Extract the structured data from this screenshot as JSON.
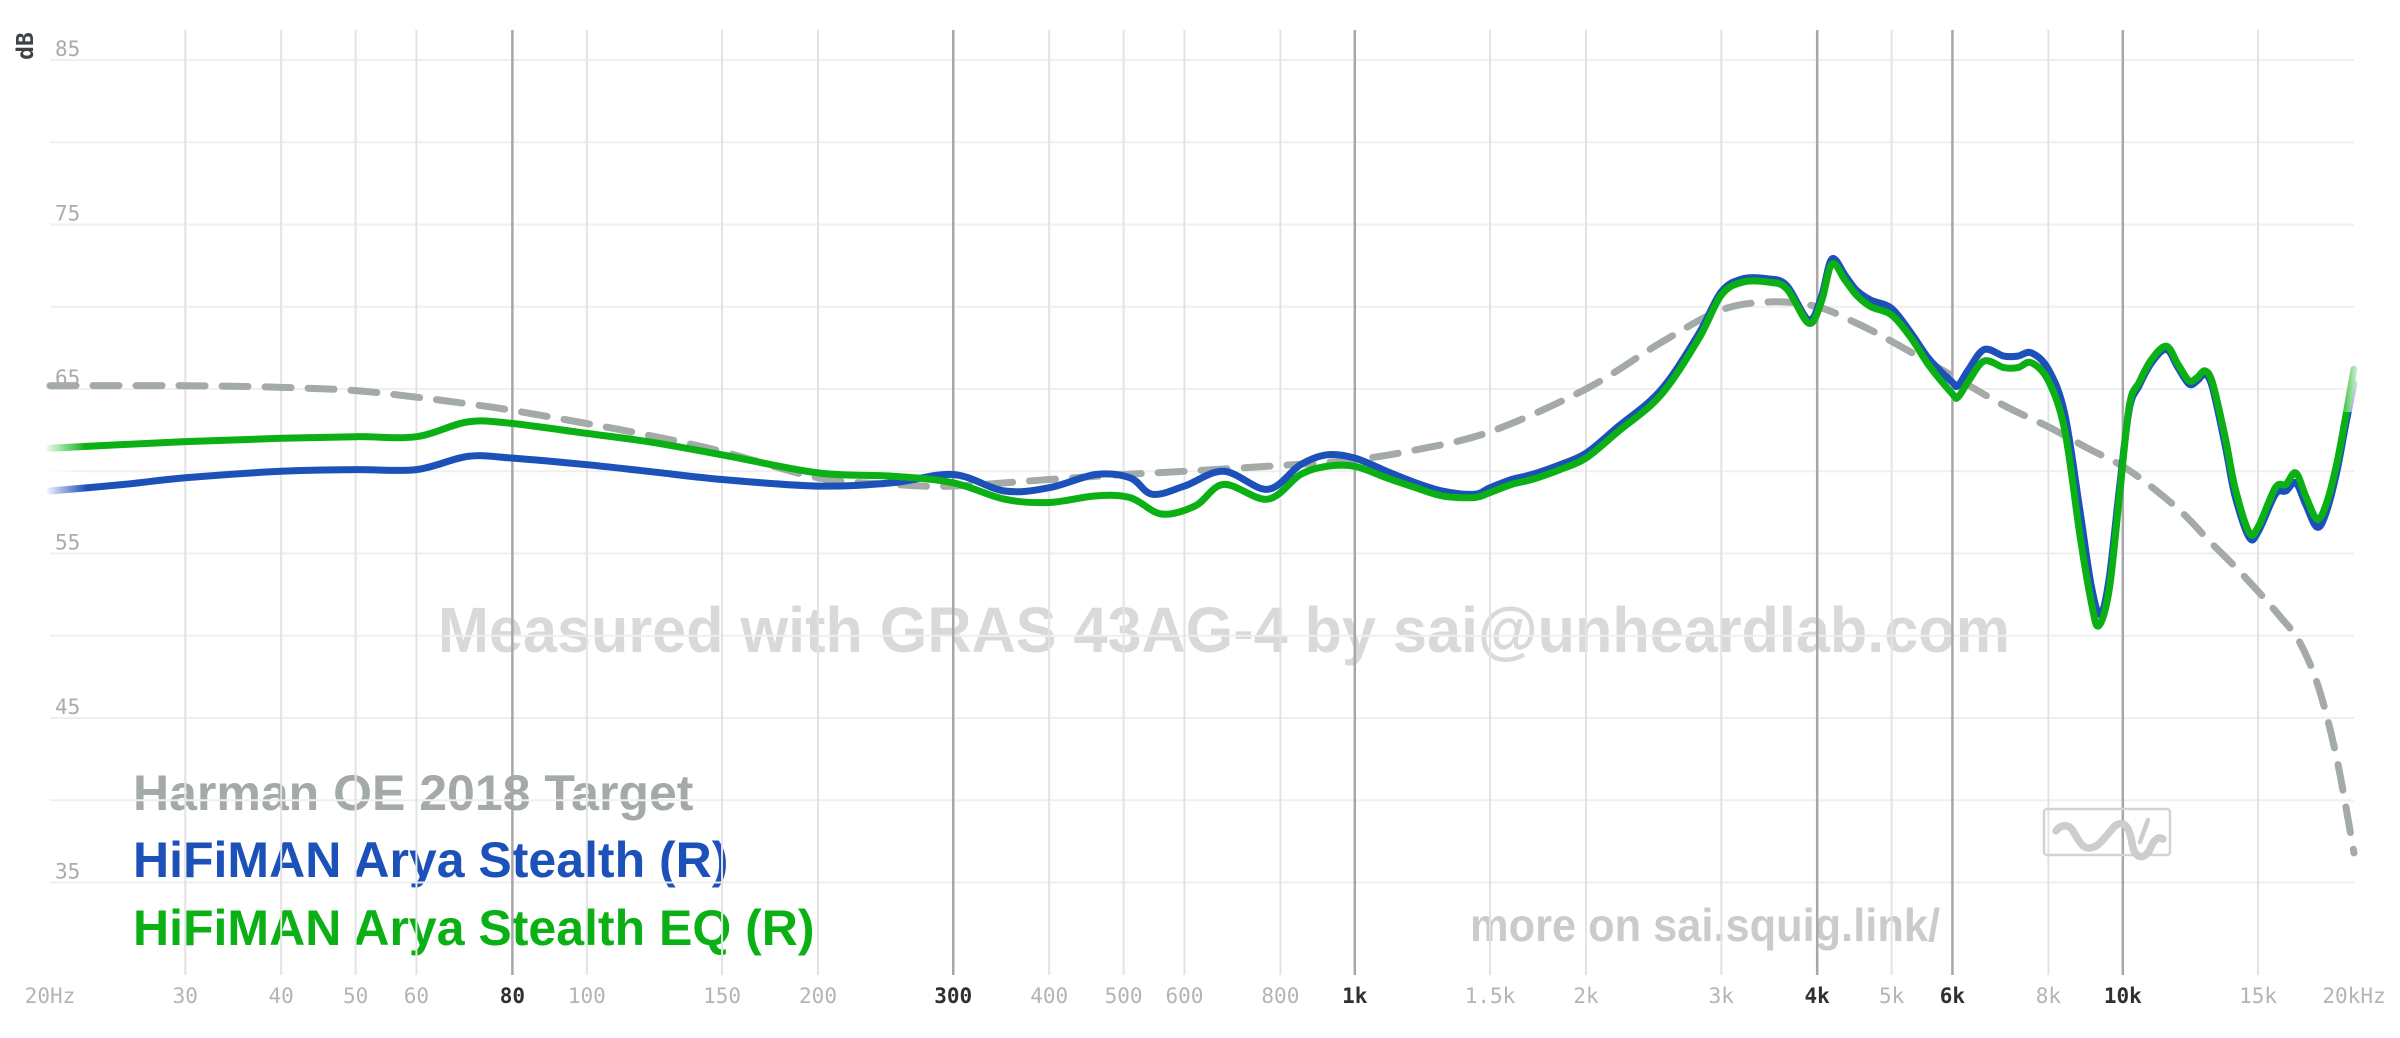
{
  "page": {
    "background": "#ffffff"
  },
  "axes": {
    "x": {
      "scale": "log",
      "min_hz": 20,
      "max_hz": 20000,
      "ticks": [
        {
          "f": 20,
          "label": "20Hz",
          "emph": false
        },
        {
          "f": 30,
          "label": "30",
          "emph": false
        },
        {
          "f": 40,
          "label": "40",
          "emph": false
        },
        {
          "f": 50,
          "label": "50",
          "emph": false
        },
        {
          "f": 60,
          "label": "60",
          "emph": false
        },
        {
          "f": 80,
          "label": "80",
          "emph": true
        },
        {
          "f": 100,
          "label": "100",
          "emph": false
        },
        {
          "f": 150,
          "label": "150",
          "emph": false
        },
        {
          "f": 200,
          "label": "200",
          "emph": false
        },
        {
          "f": 300,
          "label": "300",
          "emph": true
        },
        {
          "f": 400,
          "label": "400",
          "emph": false
        },
        {
          "f": 500,
          "label": "500",
          "emph": false
        },
        {
          "f": 600,
          "label": "600",
          "emph": false
        },
        {
          "f": 800,
          "label": "800",
          "emph": false
        },
        {
          "f": 1000,
          "label": "1k",
          "emph": true
        },
        {
          "f": 1500,
          "label": "1.5k",
          "emph": false
        },
        {
          "f": 2000,
          "label": "2k",
          "emph": false
        },
        {
          "f": 3000,
          "label": "3k",
          "emph": false
        },
        {
          "f": 4000,
          "label": "4k",
          "emph": true
        },
        {
          "f": 5000,
          "label": "5k",
          "emph": false
        },
        {
          "f": 6000,
          "label": "6k",
          "emph": true
        },
        {
          "f": 8000,
          "label": "8k",
          "emph": false
        },
        {
          "f": 10000,
          "label": "10k",
          "emph": true
        },
        {
          "f": 15000,
          "label": "15k",
          "emph": false
        },
        {
          "f": 20000,
          "label": "20kHz",
          "emph": false
        }
      ]
    },
    "y": {
      "unit": "dB",
      "min_db": 35,
      "max_db": 85,
      "gridline_step": 5,
      "labeled_ticks": [
        85,
        75,
        65,
        55,
        45,
        35
      ]
    }
  },
  "watermarks": {
    "center": "Measured with GRAS 43AG-4 by sai@unheardlab.com",
    "bottom_right": "more on sai.squig.link/"
  },
  "icons": {
    "bottom_right_logo": "squiggle-frequency-response-curve"
  },
  "colors": {
    "target_gray": "#a3aaa7",
    "stealth_blue": "#1d51ba",
    "eq_green": "#0ab014",
    "watermark_center": "#d9d9d9",
    "watermark_link": "#cbcbcb",
    "grid_light": "#e3e3e3",
    "grid_emph": "#a7a7a7",
    "grid_horizontal": "#efefef"
  },
  "chart_data": {
    "type": "line",
    "x_unit": "Hz",
    "y_unit": "dB",
    "x_scale": "log",
    "x_range": [
      20,
      20000
    ],
    "y_range": [
      35,
      85
    ],
    "grid": "on",
    "legend_position": "bottom-left",
    "series": [
      {
        "name": "Harman OE 2018 Target",
        "color": "#a3aaa7",
        "line_style": "dashed",
        "points": [
          [
            20,
            65.2
          ],
          [
            30,
            65.2
          ],
          [
            40,
            65.1
          ],
          [
            50,
            64.9
          ],
          [
            60,
            64.5
          ],
          [
            70,
            64.1
          ],
          [
            80,
            63.7
          ],
          [
            100,
            62.9
          ],
          [
            120,
            62.2
          ],
          [
            150,
            61.2
          ],
          [
            200,
            59.6
          ],
          [
            250,
            59.2
          ],
          [
            300,
            59.1
          ],
          [
            400,
            59.5
          ],
          [
            500,
            59.8
          ],
          [
            600,
            60.0
          ],
          [
            800,
            60.35
          ],
          [
            1000,
            60.7
          ],
          [
            1200,
            61.3
          ],
          [
            1500,
            62.4
          ],
          [
            2000,
            65.0
          ],
          [
            2500,
            67.8
          ],
          [
            3000,
            69.8
          ],
          [
            3500,
            70.3
          ],
          [
            4000,
            70.0
          ],
          [
            4500,
            69.0
          ],
          [
            5000,
            67.9
          ],
          [
            6000,
            65.8
          ],
          [
            7000,
            64.0
          ],
          [
            8000,
            62.7
          ],
          [
            9000,
            61.4
          ],
          [
            10000,
            60.3
          ],
          [
            11000,
            58.9
          ],
          [
            12000,
            57.4
          ],
          [
            13000,
            55.7
          ],
          [
            14000,
            54.2
          ],
          [
            15000,
            52.7
          ],
          [
            16000,
            51.2
          ],
          [
            17000,
            49.6
          ],
          [
            18000,
            46.8
          ],
          [
            19000,
            42.5
          ],
          [
            20000,
            36.8
          ]
        ]
      },
      {
        "name": "HiFiMAN Arya Stealth (R)",
        "color": "#1d51ba",
        "line_style": "solid",
        "points": [
          [
            20,
            58.8
          ],
          [
            25,
            59.2
          ],
          [
            30,
            59.6
          ],
          [
            40,
            60.0
          ],
          [
            50,
            60.1
          ],
          [
            60,
            60.1
          ],
          [
            70,
            60.9
          ],
          [
            80,
            60.8
          ],
          [
            100,
            60.4
          ],
          [
            120,
            60.0
          ],
          [
            150,
            59.5
          ],
          [
            200,
            59.1
          ],
          [
            250,
            59.3
          ],
          [
            300,
            59.8
          ],
          [
            350,
            58.8
          ],
          [
            400,
            59.0
          ],
          [
            460,
            59.8
          ],
          [
            510,
            59.6
          ],
          [
            545,
            58.6
          ],
          [
            600,
            59.1
          ],
          [
            675,
            60.0
          ],
          [
            770,
            58.9
          ],
          [
            850,
            60.4
          ],
          [
            920,
            61.0
          ],
          [
            1000,
            60.8
          ],
          [
            1100,
            60.0
          ],
          [
            1200,
            59.3
          ],
          [
            1300,
            58.8
          ],
          [
            1430,
            58.6
          ],
          [
            1500,
            59.0
          ],
          [
            1600,
            59.5
          ],
          [
            1700,
            59.8
          ],
          [
            1850,
            60.4
          ],
          [
            2000,
            61.1
          ],
          [
            2200,
            62.7
          ],
          [
            2500,
            64.9
          ],
          [
            2800,
            68.3
          ],
          [
            3000,
            70.9
          ],
          [
            3200,
            71.7
          ],
          [
            3450,
            71.7
          ],
          [
            3650,
            71.3
          ],
          [
            3900,
            69.2
          ],
          [
            4050,
            70.6
          ],
          [
            4180,
            72.9
          ],
          [
            4350,
            71.9
          ],
          [
            4500,
            71.0
          ],
          [
            4700,
            70.4
          ],
          [
            5000,
            69.9
          ],
          [
            5300,
            68.4
          ],
          [
            5600,
            66.8
          ],
          [
            6000,
            65.4
          ],
          [
            6100,
            65.2
          ],
          [
            6300,
            66.2
          ],
          [
            6600,
            67.4
          ],
          [
            7000,
            67.0
          ],
          [
            7300,
            67.0
          ],
          [
            7600,
            67.2
          ],
          [
            8000,
            66.2
          ],
          [
            8400,
            63.5
          ],
          [
            8800,
            57.5
          ],
          [
            9100,
            53.0
          ],
          [
            9350,
            51.3
          ],
          [
            9600,
            53.5
          ],
          [
            9900,
            59.0
          ],
          [
            10200,
            63.8
          ],
          [
            10500,
            65.2
          ],
          [
            10900,
            66.6
          ],
          [
            11400,
            67.4
          ],
          [
            11800,
            66.3
          ],
          [
            12200,
            65.3
          ],
          [
            12500,
            65.5
          ],
          [
            12800,
            65.9
          ],
          [
            13100,
            65.0
          ],
          [
            13600,
            61.5
          ],
          [
            14000,
            58.5
          ],
          [
            14600,
            56.0
          ],
          [
            15000,
            56.3
          ],
          [
            15800,
            58.6
          ],
          [
            16300,
            58.8
          ],
          [
            16800,
            59.3
          ],
          [
            17300,
            58.0
          ],
          [
            17900,
            56.6
          ],
          [
            18400,
            57.5
          ],
          [
            19000,
            60.0
          ],
          [
            19500,
            62.8
          ],
          [
            20000,
            65.3
          ]
        ]
      },
      {
        "name": "HiFiMAN Arya Stealth EQ (R)",
        "color": "#0ab014",
        "line_style": "solid",
        "points": [
          [
            20,
            61.4
          ],
          [
            30,
            61.8
          ],
          [
            40,
            62.0
          ],
          [
            50,
            62.1
          ],
          [
            60,
            62.1
          ],
          [
            70,
            63.0
          ],
          [
            80,
            62.9
          ],
          [
            100,
            62.3
          ],
          [
            120,
            61.8
          ],
          [
            150,
            61.0
          ],
          [
            200,
            59.9
          ],
          [
            250,
            59.7
          ],
          [
            300,
            59.3
          ],
          [
            350,
            58.3
          ],
          [
            400,
            58.1
          ],
          [
            460,
            58.5
          ],
          [
            510,
            58.4
          ],
          [
            560,
            57.4
          ],
          [
            620,
            57.9
          ],
          [
            675,
            59.2
          ],
          [
            770,
            58.3
          ],
          [
            850,
            59.8
          ],
          [
            920,
            60.3
          ],
          [
            1000,
            60.3
          ],
          [
            1100,
            59.6
          ],
          [
            1200,
            59.0
          ],
          [
            1300,
            58.5
          ],
          [
            1430,
            58.4
          ],
          [
            1500,
            58.7
          ],
          [
            1600,
            59.2
          ],
          [
            1700,
            59.5
          ],
          [
            1850,
            60.1
          ],
          [
            2000,
            60.8
          ],
          [
            2200,
            62.4
          ],
          [
            2500,
            64.6
          ],
          [
            2800,
            68.0
          ],
          [
            3000,
            70.7
          ],
          [
            3200,
            71.5
          ],
          [
            3450,
            71.5
          ],
          [
            3650,
            71.1
          ],
          [
            3900,
            69.0
          ],
          [
            4050,
            70.3
          ],
          [
            4180,
            72.6
          ],
          [
            4350,
            71.6
          ],
          [
            4500,
            70.7
          ],
          [
            4700,
            70.0
          ],
          [
            5000,
            69.5
          ],
          [
            5300,
            68.1
          ],
          [
            5600,
            66.4
          ],
          [
            6000,
            64.7
          ],
          [
            6100,
            64.5
          ],
          [
            6300,
            65.5
          ],
          [
            6600,
            66.7
          ],
          [
            7000,
            66.3
          ],
          [
            7300,
            66.3
          ],
          [
            7600,
            66.6
          ],
          [
            8000,
            65.5
          ],
          [
            8400,
            62.5
          ],
          [
            8800,
            56.0
          ],
          [
            9100,
            52.0
          ],
          [
            9300,
            50.6
          ],
          [
            9600,
            52.8
          ],
          [
            9900,
            58.5
          ],
          [
            10200,
            64.0
          ],
          [
            10500,
            65.4
          ],
          [
            10900,
            66.8
          ],
          [
            11400,
            67.6
          ],
          [
            11800,
            66.5
          ],
          [
            12200,
            65.5
          ],
          [
            12500,
            65.7
          ],
          [
            12800,
            66.1
          ],
          [
            13100,
            65.3
          ],
          [
            13600,
            62.0
          ],
          [
            14000,
            59.0
          ],
          [
            14600,
            56.3
          ],
          [
            15000,
            56.6
          ],
          [
            15800,
            59.0
          ],
          [
            16300,
            59.2
          ],
          [
            16800,
            59.9
          ],
          [
            17300,
            58.5
          ],
          [
            17900,
            57.1
          ],
          [
            18400,
            58.0
          ],
          [
            19000,
            60.5
          ],
          [
            19500,
            63.3
          ],
          [
            20000,
            66.2
          ]
        ]
      }
    ]
  }
}
